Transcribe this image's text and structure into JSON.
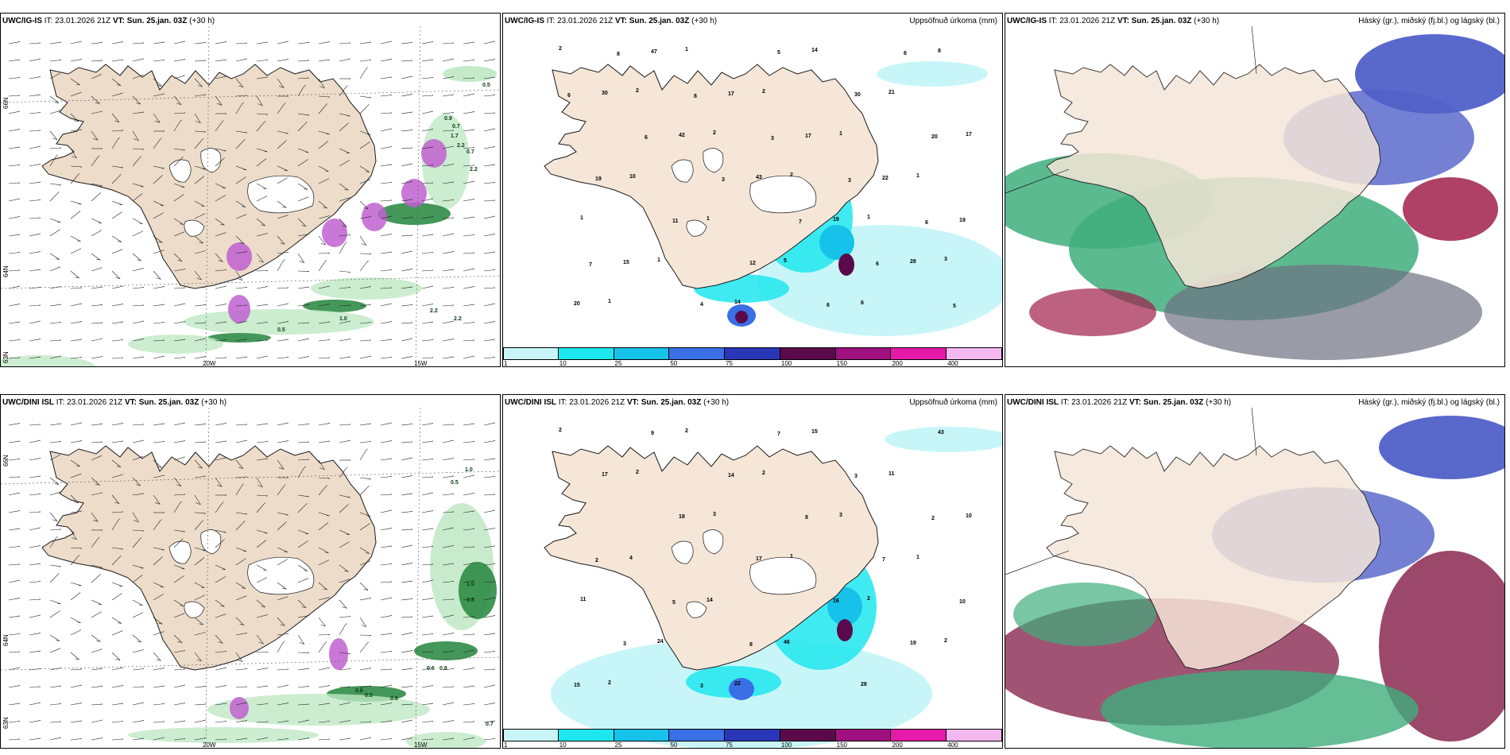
{
  "panels": [
    {
      "id": "p1",
      "model": "UWC/IG-IS",
      "it_label": "IT:",
      "it": "23.01.2026 21Z",
      "vt_label": "VT:",
      "vt": "Sun. 25.jan. 03Z",
      "lead": "(+30 h)",
      "right_title": ""
    },
    {
      "id": "p2",
      "model": "UWC/IG-IS",
      "it_label": "IT:",
      "it": "23.01.2026 21Z",
      "vt_label": "VT:",
      "vt": "Sun. 25.jan. 03Z",
      "lead": "(+30 h)",
      "right_title": "Uppsöfnuð úrkoma (mm)"
    },
    {
      "id": "p3",
      "model": "UWC/IG-IS",
      "it_label": "IT:",
      "it": "23.01.2026 21Z",
      "vt_label": "VT:",
      "vt": "Sun. 25.jan. 03Z",
      "lead": "(+30 h)",
      "right_title": "Háský (gr.), miðský (fj.bl.) og lágský (bl.)"
    },
    {
      "id": "p4",
      "model": "UWC/DINI ISL",
      "it_label": "IT:",
      "it": "23.01.2026 21Z",
      "vt_label": "VT:",
      "vt": "Sun. 25.jan. 03Z",
      "lead": "(+30 h)",
      "right_title": ""
    },
    {
      "id": "p5",
      "model": "UWC/DINI ISL",
      "it_label": "IT:",
      "it": "23.01.2026 21Z",
      "vt_label": "VT:",
      "vt": "Sun. 25.jan. 03Z",
      "lead": "(+30 h)",
      "right_title": "Uppsöfnuð úrkoma (mm)"
    },
    {
      "id": "p6",
      "model": "UWC/DINI ISL",
      "it_label": "IT:",
      "it": "23.01.2026 21Z",
      "vt_label": "VT:",
      "vt": "Sun. 25.jan. 03Z",
      "lead": "(+30 h)",
      "right_title": "Háský (gr.), miðský (fj.bl.) og lágský (bl.)"
    }
  ],
  "axes": {
    "lat_66": "66N",
    "lat_64": "64N",
    "lat_63": "63N",
    "lon_20": "20W",
    "lon_15": "15W"
  },
  "colorbar": {
    "ticks": [
      "1",
      "10",
      "25",
      "50",
      "75",
      "100",
      "150",
      "200",
      "400"
    ],
    "colors": [
      "#c8f6f8",
      "#1ee6ee",
      "#16c2ea",
      "#3a6fe6",
      "#2a36b8",
      "#5a0a4a",
      "#a0107e",
      "#e61aa8",
      "#f4b8f0"
    ]
  },
  "colors": {
    "land": "#f5e6d8",
    "land_wind": "#ecdcc9",
    "coast": "#1a1a1a",
    "cloud_high": "#6e7080",
    "cloud_mid": "#5060c8",
    "cloud_low": "#3fae7c"
  },
  "p1_labels": [
    "0.5",
    "0.9",
    "0.7",
    "1.7",
    "2.2",
    "0.7",
    "2.2",
    "1.0",
    "2.2",
    "0.5",
    "2.2"
  ],
  "p2_labels": [
    "2",
    "2",
    "2",
    "2",
    "1",
    "3",
    "1",
    "1",
    "2",
    "1",
    "1",
    "1",
    "1",
    "14",
    "14",
    "21",
    "17",
    "10",
    "1",
    "5",
    "6",
    "8",
    "30",
    "42",
    "43",
    "19",
    "28",
    "20",
    "47",
    "17",
    "17",
    "22",
    "19",
    "15",
    "4",
    "5",
    "30",
    "20",
    "19",
    "11",
    "12",
    "6",
    "6",
    "6",
    "6",
    "3",
    "7",
    "6",
    "5",
    "8",
    "8",
    "3",
    "3",
    "6",
    "7"
  ],
  "p4_labels": [
    "1.0",
    "0.5",
    "1.0",
    "0.8",
    "0.6",
    "0.8",
    "0.6",
    "0.5",
    "0.6",
    "0.7",
    "1.3"
  ],
  "p5_labels": [
    "2",
    "2",
    "3",
    "1",
    "2",
    "2",
    "2",
    "2",
    "2",
    "3",
    "1",
    "11",
    "24",
    "22",
    "15",
    "11",
    "10",
    "4",
    "14",
    "46",
    "28",
    "43",
    "17",
    "18",
    "17",
    "16",
    "19",
    "15",
    "9",
    "14",
    "8",
    "7",
    "10",
    "3",
    "3",
    "7",
    "3",
    "2",
    "2",
    "5",
    "8"
  ]
}
